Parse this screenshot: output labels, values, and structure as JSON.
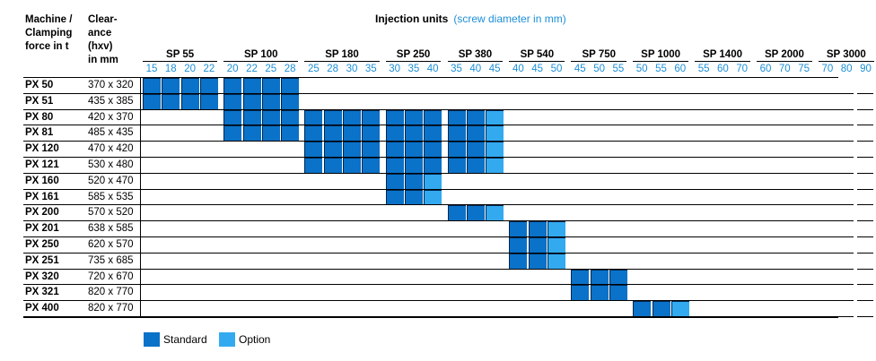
{
  "headers": {
    "machine": [
      "Machine /",
      "Clamping",
      "force in t"
    ],
    "clearance": [
      "Clear-",
      "ance",
      "(hxv)",
      "in mm"
    ]
  },
  "title": {
    "main": "Injection units",
    "sub": "(screw diameter in mm)"
  },
  "groups": [
    {
      "name": "SP 55",
      "diameters": [
        "15",
        "18",
        "20",
        "22"
      ]
    },
    {
      "name": "SP 100",
      "diameters": [
        "20",
        "22",
        "25",
        "28"
      ]
    },
    {
      "name": "SP 180",
      "diameters": [
        "25",
        "28",
        "30",
        "35"
      ]
    },
    {
      "name": "SP 250",
      "diameters": [
        "30",
        "35",
        "40"
      ]
    },
    {
      "name": "SP 380",
      "diameters": [
        "35",
        "40",
        "45"
      ]
    },
    {
      "name": "SP 540",
      "diameters": [
        "40",
        "45",
        "50"
      ]
    },
    {
      "name": "SP 750",
      "diameters": [
        "45",
        "50",
        "55"
      ]
    },
    {
      "name": "SP 1000",
      "diameters": [
        "50",
        "55",
        "60"
      ]
    },
    {
      "name": "SP 1400",
      "diameters": [
        "55",
        "60",
        "70"
      ]
    },
    {
      "name": "SP 2000",
      "diameters": [
        "60",
        "70",
        "75"
      ]
    },
    {
      "name": "SP 3000",
      "diameters": [
        "70",
        "80",
        "90"
      ]
    }
  ],
  "rows": [
    {
      "machine": "PX 50",
      "clearance": "370 x 320",
      "cells": "SSSSSSSS"
    },
    {
      "machine": "PX 51",
      "clearance": "435 x 385",
      "cells": "SSSSSSSS"
    },
    {
      "machine": "PX 80",
      "clearance": "420 x 370",
      "cells": "....SSSSSSSSSSSSSO"
    },
    {
      "machine": "PX 81",
      "clearance": "485 x 435",
      "cells": "....SSSSSSSSSSSSSO"
    },
    {
      "machine": "PX 120",
      "clearance": "470 x 420",
      "cells": "........SSSSSSSSSO"
    },
    {
      "machine": "PX 121",
      "clearance": "530 x 480",
      "cells": "........SSSSSSSSSO"
    },
    {
      "machine": "PX 160",
      "clearance": "520 x 470",
      "cells": "............SSO..."
    },
    {
      "machine": "PX 161",
      "clearance": "585 x 535",
      "cells": "............SSO..."
    },
    {
      "machine": "PX 200",
      "clearance": "570 x 520",
      "cells": "...............SSO"
    },
    {
      "machine": "PX 201",
      "clearance": "638 x 585",
      "cells": "..................SSO"
    },
    {
      "machine": "PX 250",
      "clearance": "620 x 570",
      "cells": "..................SSO"
    },
    {
      "machine": "PX 251",
      "clearance": "735 x 685",
      "cells": "..................SSO"
    },
    {
      "machine": "PX 320",
      "clearance": "720 x 670",
      "cells": ".....................SSS"
    },
    {
      "machine": "PX 321",
      "clearance": "820 x 770",
      "cells": ".....................SSS"
    },
    {
      "machine": "PX 400",
      "clearance": "820 x 770",
      "cells": "........................SSO"
    }
  ],
  "legend": {
    "standard": "Standard",
    "option": "Option"
  },
  "colors": {
    "standard": "#0a72c8",
    "option": "#33aaf0",
    "accent_text": "#1c8fd8"
  }
}
